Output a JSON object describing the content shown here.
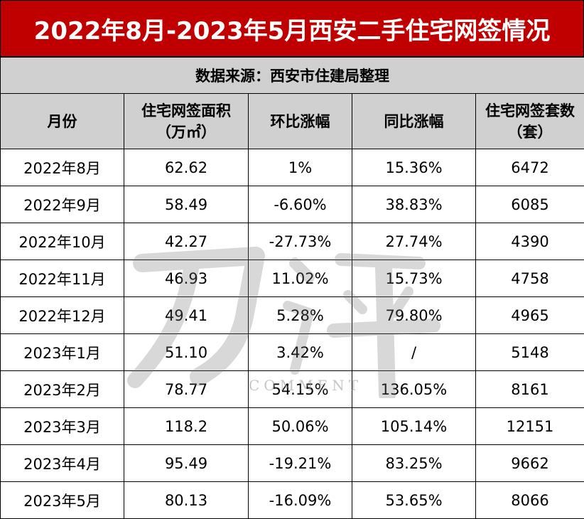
{
  "title": "2022年8月-2023年5月西安二手住宅网签情况",
  "source": "数据来源：西安市住建局整理",
  "headers": {
    "month": "月份",
    "area_line1": "住宅网签面积",
    "area_line2": "（万㎡）",
    "mom": "环比涨幅",
    "yoy": "同比涨幅",
    "units_line1": "住宅网签套数",
    "units_line2": "（套）"
  },
  "rows": [
    {
      "month": "2022年8月",
      "area": "62.62",
      "mom": "1%",
      "yoy": "15.36%",
      "units": "6472"
    },
    {
      "month": "2022年9月",
      "area": "58.49",
      "mom": "-6.60%",
      "yoy": "38.83%",
      "units": "6085"
    },
    {
      "month": "2022年10月",
      "area": "42.27",
      "mom": "-27.73%",
      "yoy": "27.74%",
      "units": "4390"
    },
    {
      "month": "2022年11月",
      "area": "46.93",
      "mom": "11.02%",
      "yoy": "15.73%",
      "units": "4758"
    },
    {
      "month": "2022年12月",
      "area": "49.41",
      "mom": "5.28%",
      "yoy": "79.80%",
      "units": "4965"
    },
    {
      "month": "2023年1月",
      "area": "51.10",
      "mom": "3.42%",
      "yoy": "/",
      "units": "5148"
    },
    {
      "month": "2023年2月",
      "area": "78.77",
      "mom": "54.15%",
      "yoy": "136.05%",
      "units": "8161"
    },
    {
      "month": "2023年3月",
      "area": "118.2",
      "mom": "50.06%",
      "yoy": "105.14%",
      "units": "12151"
    },
    {
      "month": "2023年4月",
      "area": "95.49",
      "mom": "-19.21%",
      "yoy": "83.25%",
      "units": "9662"
    },
    {
      "month": "2023年5月",
      "area": "80.13",
      "mom": "-16.09%",
      "yoy": "53.65%",
      "units": "8066"
    }
  ],
  "colors": {
    "title_bg": "#c00000",
    "header_bg": "#d0d0d0",
    "border": "#000000"
  },
  "watermark": {
    "text": "COMMENT"
  }
}
